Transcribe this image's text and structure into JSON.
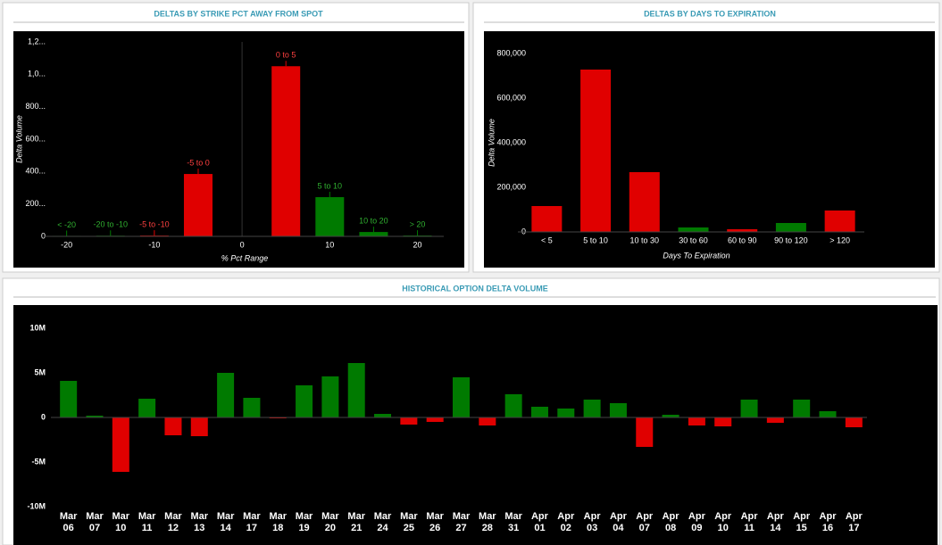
{
  "chart_data": [
    {
      "type": "bar",
      "title": "DELTAS BY STRIKE PCT AWAY FROM SPOT",
      "x_label": "% Pct Range",
      "y_label": "Delta Volume",
      "x": [
        -20,
        -15,
        -10,
        -5,
        5,
        10,
        15,
        20
      ],
      "labels": [
        "< -20",
        "-20 to -10",
        "-5 to -10",
        "-5 to 0",
        "0 to 5",
        "5 to 10",
        "10 to 20",
        "> 20"
      ],
      "values": [
        3000,
        4000,
        5000,
        385000,
        1050000,
        242000,
        27000,
        5000
      ],
      "colors": [
        "#007a00",
        "#007a00",
        "#e00000",
        "#e00000",
        "#e00000",
        "#007a00",
        "#007a00",
        "#007a00"
      ],
      "xlim": [
        -22,
        23
      ],
      "xticks": [
        -20,
        -10,
        0,
        10,
        20
      ],
      "ylim": [
        0,
        1200000
      ],
      "yticks": [
        0,
        {
          "value": 200000,
          "label": "200..."
        },
        {
          "value": 400000,
          "label": "400..."
        },
        {
          "value": 600000,
          "label": "600..."
        },
        {
          "value": 800000,
          "label": "800..."
        },
        {
          "value": 1000000,
          "label": "1,0..."
        },
        {
          "value": 1200000,
          "label": "1,2..."
        }
      ]
    },
    {
      "type": "bar",
      "title": "DELTAS BY DAYS TO EXPIRATION",
      "x_label": "Days To Expiration",
      "y_label": "Delta Volume",
      "categories": [
        "< 5",
        "5 to 10",
        "10 to 30",
        "30 to 60",
        "60 to 90",
        "90 to 120",
        "> 120"
      ],
      "values": [
        116000,
        728000,
        268000,
        20000,
        12000,
        40000,
        96000
      ],
      "colors": [
        "#e00000",
        "#e00000",
        "#e00000",
        "#007a00",
        "#e00000",
        "#007a00",
        "#e00000"
      ],
      "ylim": [
        0,
        860000
      ],
      "yticks": [
        0,
        {
          "value": 200000,
          "label": "200,000"
        },
        {
          "value": 400000,
          "label": "400,000"
        },
        {
          "value": 600000,
          "label": "600,000"
        },
        {
          "value": 800000,
          "label": "800,000"
        }
      ]
    },
    {
      "type": "bar",
      "title": "HISTORICAL OPTION DELTA VOLUME",
      "categories": [
        "Mar 06",
        "Mar 07",
        "Mar 10",
        "Mar 11",
        "Mar 12",
        "Mar 13",
        "Mar 14",
        "Mar 17",
        "Mar 18",
        "Mar 19",
        "Mar 20",
        "Mar 21",
        "Mar 24",
        "Mar 25",
        "Mar 26",
        "Mar 27",
        "Mar 28",
        "Mar 31",
        "Apr 01",
        "Apr 02",
        "Apr 03",
        "Apr 04",
        "Apr 07",
        "Apr 08",
        "Apr 09",
        "Apr 10",
        "Apr 11",
        "Apr 14",
        "Apr 15",
        "Apr 16",
        "Apr 17"
      ],
      "values": [
        4100000,
        200000,
        -6100000,
        2100000,
        -2000000,
        -2100000,
        5000000,
        2200000,
        -100000,
        3600000,
        4600000,
        6100000,
        400000,
        -800000,
        -500000,
        4500000,
        -900000,
        2600000,
        1200000,
        1000000,
        2000000,
        1600000,
        -3300000,
        300000,
        -900000,
        -1000000,
        2000000,
        -600000,
        2000000,
        700000,
        -1100000
      ],
      "positive_color": "#007a00",
      "negative_color": "#e00000",
      "ylim": [
        -10000000,
        10000000
      ],
      "yticks": [
        {
          "value": -10000000,
          "label": "-10M"
        },
        {
          "value": -5000000,
          "label": "-5M"
        },
        0,
        {
          "value": 5000000,
          "label": "5M"
        },
        {
          "value": 10000000,
          "label": "10M"
        }
      ]
    }
  ]
}
